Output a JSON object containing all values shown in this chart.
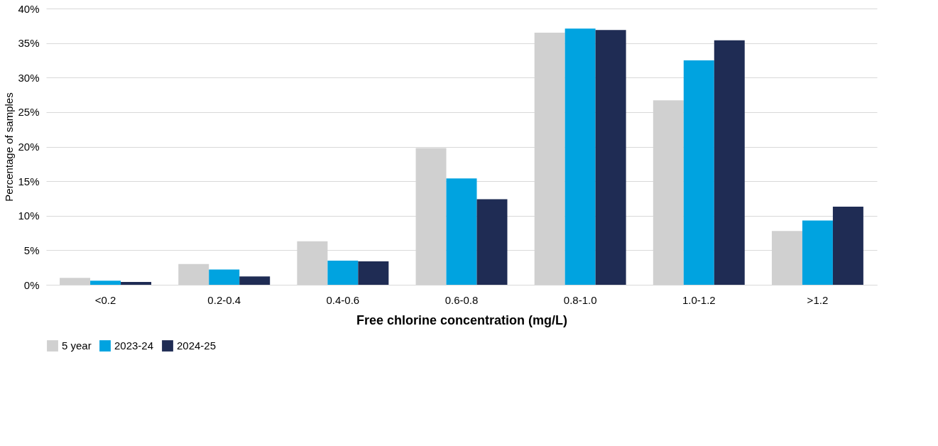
{
  "chart_data": {
    "type": "bar",
    "xlabel": "Free chlorine concentration (mg/L)",
    "ylabel": "Percentage of samples",
    "categories": [
      "<0.2",
      "0.2-0.4",
      "0.4-0.6",
      "0.6-0.8",
      "0.8-1.0",
      "1.0-1.2",
      ">1.2"
    ],
    "series": [
      {
        "name": "5 year",
        "color": "#d0d0d0",
        "values": [
          1.0,
          3.0,
          6.3,
          19.8,
          36.5,
          26.7,
          7.8
        ]
      },
      {
        "name": "2023-24",
        "color": "#00a3e0",
        "values": [
          0.6,
          2.2,
          3.5,
          15.4,
          37.1,
          32.5,
          9.3
        ]
      },
      {
        "name": "2024-25",
        "color": "#1f2c54",
        "values": [
          0.4,
          1.2,
          3.4,
          12.4,
          36.9,
          35.4,
          11.3
        ]
      }
    ],
    "ylim": [
      0,
      40
    ],
    "yticks": [
      {
        "value": 0,
        "label": "0%"
      },
      {
        "value": 5,
        "label": "5%"
      },
      {
        "value": 10,
        "label": "10%"
      },
      {
        "value": 15,
        "label": "15%"
      },
      {
        "value": 20,
        "label": "20%"
      },
      {
        "value": 25,
        "label": "25%"
      },
      {
        "value": 30,
        "label": "30%"
      },
      {
        "value": 35,
        "label": "35%"
      },
      {
        "value": 40,
        "label": "40%"
      }
    ],
    "grid": "y",
    "legend": "bottom"
  }
}
